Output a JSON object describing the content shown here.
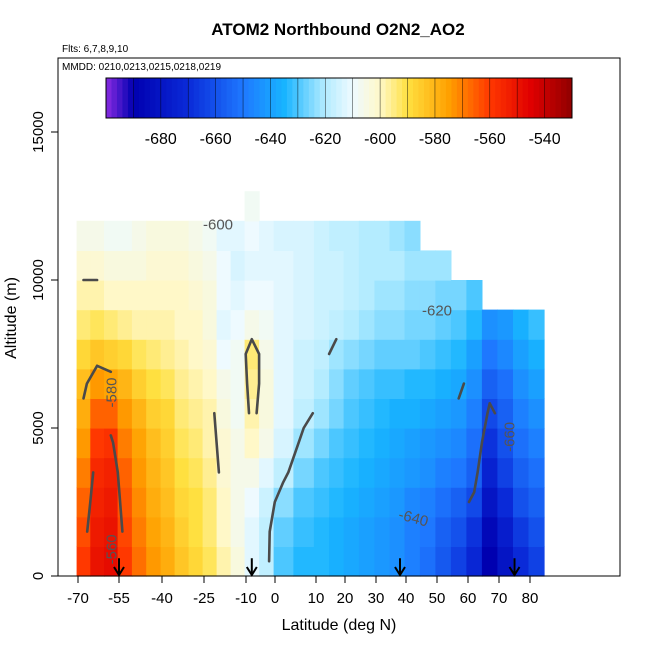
{
  "chart_data": {
    "type": "heatmap",
    "title": "ATOM2 Northbound O2N2_AO2",
    "subtitle_lines": [
      "Flts: 6,7,8,9,10",
      "MMDD: 0210,0213,0215,0218,0219"
    ],
    "xlabel": "Latitude (deg N)",
    "ylabel": "Altitude (m)",
    "xlim": [
      -70,
      85
    ],
    "ylim": [
      0,
      17500
    ],
    "x_ticks": [
      -70,
      -55,
      -40,
      -25,
      -10,
      0,
      10,
      20,
      30,
      40,
      50,
      60,
      70,
      80
    ],
    "x_tick_labels": [
      "-70",
      "-55",
      "-40",
      "-25",
      "-10",
      "0",
      "10",
      "20",
      "30",
      "40",
      "50",
      "60",
      "70",
      "80"
    ],
    "y_ticks": [
      0,
      5000,
      10000,
      15000
    ],
    "y_tick_labels": [
      "0",
      "5000",
      "10000",
      "15000"
    ],
    "colorbar": {
      "range": [
        -700,
        -530
      ],
      "ticks": [
        -680,
        -660,
        -640,
        -620,
        -600,
        -580,
        -560,
        -540
      ],
      "tick_labels": [
        "-680",
        "-660",
        "-640",
        "-620",
        "-600",
        "-580",
        "-560",
        "-540"
      ],
      "stops": [
        {
          "value": -700,
          "color": "#8a2be2"
        },
        {
          "value": -690,
          "color": "#0000b0"
        },
        {
          "value": -670,
          "color": "#0a2ad8"
        },
        {
          "value": -650,
          "color": "#1e78ff"
        },
        {
          "value": -635,
          "color": "#18b4ff"
        },
        {
          "value": -620,
          "color": "#b4ecff"
        },
        {
          "value": -610,
          "color": "#eefaff"
        },
        {
          "value": -600,
          "color": "#fff8c8"
        },
        {
          "value": -590,
          "color": "#ffe040"
        },
        {
          "value": -575,
          "color": "#ffa000"
        },
        {
          "value": -560,
          "color": "#ff3800"
        },
        {
          "value": -545,
          "color": "#e00000"
        },
        {
          "value": -530,
          "color": "#900000"
        }
      ]
    },
    "latitude_bins": [
      -68,
      -63,
      -58,
      -53,
      -48,
      -43,
      -38,
      -33,
      -28,
      -23,
      -18,
      -13,
      -8,
      -3,
      2,
      7,
      12,
      17,
      22,
      27,
      32,
      37,
      42,
      47,
      52,
      57,
      62,
      67,
      72,
      77,
      82
    ],
    "altitude_bins": [
      500,
      1500,
      2500,
      3500,
      4500,
      5500,
      6500,
      7500,
      8500,
      9500,
      10500,
      11500,
      12500
    ],
    "columns": [
      {
        "lat": -68,
        "values": [
          -560,
          -563,
          -566,
          -570,
          -574,
          -578,
          -582,
          -588,
          -594,
          -598,
          -602,
          -606,
          null
        ]
      },
      {
        "lat": -63,
        "values": [
          -550,
          -552,
          -554,
          -556,
          -560,
          -566,
          -574,
          -584,
          -592,
          -598,
          -602,
          -606,
          null
        ]
      },
      {
        "lat": -58,
        "values": [
          -548,
          -550,
          -552,
          -554,
          -558,
          -566,
          -576,
          -586,
          -594,
          -600,
          -604,
          -608,
          null
        ]
      },
      {
        "lat": -53,
        "values": [
          -560,
          -562,
          -564,
          -566,
          -570,
          -574,
          -580,
          -588,
          -596,
          -600,
          -604,
          -608,
          null
        ]
      },
      {
        "lat": -48,
        "values": [
          -568,
          -570,
          -572,
          -574,
          -576,
          -580,
          -586,
          -592,
          -598,
          -600,
          -604,
          -606,
          null
        ]
      },
      {
        "lat": -43,
        "values": [
          -574,
          -576,
          -578,
          -580,
          -582,
          -586,
          -590,
          -594,
          -598,
          -600,
          -602,
          -604,
          null
        ]
      },
      {
        "lat": -38,
        "values": [
          -578,
          -580,
          -582,
          -584,
          -586,
          -588,
          -592,
          -596,
          -598,
          -600,
          -602,
          -604,
          null
        ]
      },
      {
        "lat": -33,
        "values": [
          -584,
          -586,
          -588,
          -590,
          -592,
          -594,
          -596,
          -598,
          -600,
          -600,
          -602,
          -604,
          null
        ]
      },
      {
        "lat": -28,
        "values": [
          -588,
          -590,
          -590,
          -592,
          -594,
          -596,
          -598,
          -600,
          -600,
          -602,
          -604,
          -606,
          null
        ]
      },
      {
        "lat": -23,
        "values": [
          -592,
          -594,
          -594,
          -596,
          -598,
          -598,
          -600,
          -602,
          -604,
          -604,
          -606,
          -608,
          null
        ]
      },
      {
        "lat": -18,
        "values": [
          -598,
          -600,
          -600,
          -602,
          -602,
          -604,
          -606,
          -610,
          -612,
          -610,
          -610,
          -612,
          null
        ]
      },
      {
        "lat": -13,
        "values": [
          -604,
          -606,
          -606,
          -606,
          -606,
          -608,
          -608,
          -608,
          -610,
          -612,
          -614,
          -612,
          null
        ]
      },
      {
        "lat": -8,
        "values": [
          -612,
          -612,
          -610,
          -606,
          -600,
          -598,
          -596,
          -594,
          -606,
          -610,
          -612,
          -610,
          -608
        ]
      },
      {
        "lat": -3,
        "values": [
          -618,
          -618,
          -616,
          -612,
          -606,
          -604,
          -604,
          -606,
          -608,
          -610,
          -612,
          -612,
          null
        ]
      },
      {
        "lat": 2,
        "values": [
          -630,
          -628,
          -624,
          -618,
          -614,
          -612,
          -612,
          -612,
          -612,
          -612,
          -612,
          -614,
          null
        ]
      },
      {
        "lat": 7,
        "values": [
          -634,
          -632,
          -630,
          -626,
          -622,
          -618,
          -616,
          -616,
          -614,
          -614,
          -614,
          -614,
          null
        ]
      },
      {
        "lat": 12,
        "values": [
          -634,
          -634,
          -632,
          -630,
          -626,
          -622,
          -620,
          -618,
          -616,
          -616,
          -616,
          -616,
          null
        ]
      },
      {
        "lat": 17,
        "values": [
          -636,
          -636,
          -634,
          -632,
          -630,
          -626,
          -624,
          -622,
          -618,
          -616,
          -616,
          -618,
          null
        ]
      },
      {
        "lat": 22,
        "values": [
          -638,
          -638,
          -636,
          -634,
          -632,
          -630,
          -628,
          -624,
          -620,
          -618,
          -618,
          -618,
          null
        ]
      },
      {
        "lat": 27,
        "values": [
          -640,
          -640,
          -638,
          -636,
          -634,
          -632,
          -630,
          -626,
          -622,
          -620,
          -620,
          -620,
          null
        ]
      },
      {
        "lat": 32,
        "values": [
          -642,
          -642,
          -640,
          -638,
          -636,
          -634,
          -632,
          -628,
          -624,
          -622,
          -620,
          -620,
          null
        ]
      },
      {
        "lat": 37,
        "values": [
          -644,
          -644,
          -642,
          -640,
          -638,
          -636,
          -632,
          -628,
          -624,
          -622,
          -620,
          -622,
          null
        ]
      },
      {
        "lat": 42,
        "values": [
          -648,
          -648,
          -646,
          -642,
          -640,
          -636,
          -634,
          -628,
          -626,
          -624,
          -622,
          -624,
          null
        ]
      },
      {
        "lat": 47,
        "values": [
          -652,
          -650,
          -648,
          -644,
          -642,
          -638,
          -634,
          -630,
          -626,
          -624,
          -622,
          null,
          null
        ]
      },
      {
        "lat": 52,
        "values": [
          -658,
          -656,
          -652,
          -648,
          -644,
          -640,
          -636,
          -632,
          -628,
          -626,
          -622,
          null,
          null
        ]
      },
      {
        "lat": 57,
        "values": [
          -664,
          -660,
          -656,
          -650,
          -646,
          -642,
          -638,
          -634,
          -630,
          -626,
          null,
          null,
          null
        ]
      },
      {
        "lat": 62,
        "values": [
          -672,
          -668,
          -662,
          -656,
          -652,
          -648,
          -644,
          -640,
          -634,
          -630,
          null,
          null,
          null
        ]
      },
      {
        "lat": 67,
        "values": [
          -690,
          -686,
          -680,
          -674,
          -668,
          -662,
          -656,
          -650,
          -644,
          null,
          null,
          null,
          null
        ]
      },
      {
        "lat": 72,
        "values": [
          -680,
          -676,
          -670,
          -664,
          -660,
          -656,
          -652,
          -646,
          -642,
          null,
          null,
          null,
          null
        ]
      },
      {
        "lat": 77,
        "values": [
          -670,
          -666,
          -660,
          -656,
          -652,
          -648,
          -644,
          -640,
          -636,
          null,
          null,
          null,
          null
        ]
      },
      {
        "lat": 82,
        "values": [
          -664,
          -660,
          -656,
          -652,
          -648,
          -644,
          -640,
          -636,
          -632,
          null,
          null,
          null,
          null
        ]
      }
    ],
    "contour_labels": [
      "-600",
      "-580",
      "-560",
      "-620",
      "-640",
      "-660",
      "-620",
      "-600",
      "-580"
    ],
    "contour_label_values": [
      -600,
      -580,
      -560,
      -620,
      -640,
      -660,
      -620,
      -600,
      -580
    ],
    "arrow_latitudes": [
      -55,
      -8,
      38,
      75
    ]
  }
}
